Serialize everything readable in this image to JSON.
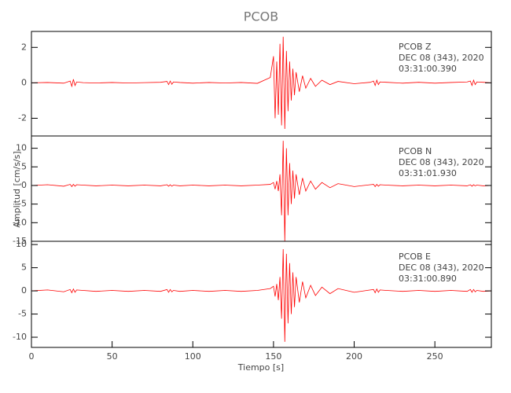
{
  "chart_data": [
    {
      "type": "line",
      "title": "PCOB",
      "color": "#ff0000",
      "annotations": [
        "PCOB   Z",
        "DEC 08 (343), 2020",
        "03:31:00.390"
      ],
      "xlim": [
        0,
        285
      ],
      "ylim": [
        -3,
        2.9
      ],
      "yticks": [
        -2,
        0,
        2
      ],
      "x": [
        0,
        10,
        20,
        24,
        25,
        26,
        27,
        28,
        32,
        40,
        50,
        60,
        70,
        80,
        84,
        85,
        86,
        87,
        88,
        92,
        100,
        110,
        120,
        130,
        140,
        148,
        150,
        151,
        152,
        153,
        154,
        155,
        156,
        157,
        158,
        159,
        160,
        161,
        162,
        163,
        164,
        166,
        168,
        170,
        173,
        176,
        180,
        185,
        190,
        200,
        210,
        212,
        213,
        214,
        215,
        216,
        220,
        230,
        240,
        250,
        260,
        270,
        272,
        273,
        274,
        275,
        276,
        280,
        285
      ],
      "values": [
        0,
        0.02,
        -0.02,
        0.1,
        -0.2,
        0.2,
        -0.15,
        0.05,
        0.01,
        -0.01,
        0.02,
        -0.01,
        0.01,
        0.03,
        0.08,
        -0.1,
        0.1,
        -0.08,
        0.05,
        0.02,
        -0.02,
        0.02,
        -0.01,
        0.02,
        -0.03,
        0.3,
        1.5,
        -2,
        1.2,
        -1.8,
        2.2,
        -2.4,
        2.6,
        -2.6,
        1.8,
        -1.6,
        1.2,
        -1,
        0.8,
        -0.7,
        0.6,
        -0.5,
        0.4,
        -0.3,
        0.25,
        -0.2,
        0.15,
        -0.1,
        0.08,
        -0.05,
        0.03,
        0.1,
        -0.15,
        0.15,
        -0.1,
        0.05,
        0.03,
        -0.02,
        0.03,
        -0.02,
        0.02,
        0.05,
        0.1,
        -0.15,
        0.15,
        -0.1,
        0.05,
        0.03,
        0
      ]
    },
    {
      "type": "line",
      "ylabel": "Amplitud [cm/s/s]",
      "color": "#ff0000",
      "annotations": [
        "PCOB   N",
        "DEC 08 (343), 2020",
        "03:31:01.930"
      ],
      "xlim": [
        0,
        285
      ],
      "ylim": [
        -15,
        13.3
      ],
      "yticks": [
        -15,
        -10,
        -5,
        0,
        5,
        10
      ],
      "x": [
        0,
        10,
        20,
        24,
        25,
        26,
        27,
        28,
        32,
        40,
        50,
        60,
        70,
        80,
        84,
        85,
        86,
        87,
        88,
        92,
        100,
        110,
        120,
        130,
        140,
        148,
        150,
        151,
        152,
        153,
        154,
        155,
        156,
        157,
        158,
        159,
        160,
        161,
        162,
        163,
        164,
        166,
        168,
        170,
        173,
        176,
        180,
        185,
        190,
        200,
        210,
        212,
        213,
        214,
        215,
        216,
        220,
        230,
        240,
        250,
        260,
        270,
        272,
        273,
        274,
        275,
        276,
        280,
        285
      ],
      "values": [
        0,
        0.2,
        -0.2,
        0.3,
        -0.3,
        0.3,
        -0.2,
        0.2,
        0.1,
        -0.1,
        0.1,
        -0.1,
        0.1,
        -0.1,
        0.2,
        -0.2,
        0.2,
        -0.2,
        0.1,
        -0.1,
        0.1,
        -0.1,
        0.1,
        -0.1,
        0.1,
        0.3,
        0.8,
        -1,
        1.2,
        -1.5,
        3,
        -8,
        12,
        -15,
        10,
        -8,
        6,
        -5,
        4,
        -3.5,
        3,
        -2.5,
        2,
        -1.5,
        1.2,
        -1,
        0.8,
        -0.6,
        0.5,
        -0.3,
        0.2,
        0.3,
        -0.3,
        0.3,
        -0.2,
        0.2,
        0.1,
        -0.1,
        0.1,
        -0.1,
        0.1,
        -0.1,
        0.2,
        -0.2,
        0.2,
        -0.1,
        0.1,
        -0.1,
        0
      ]
    },
    {
      "type": "line",
      "xlabel": "Tiempo [s]",
      "color": "#ff0000",
      "annotations": [
        "PCOB   E",
        "DEC 08 (343), 2020",
        "03:31:00.890"
      ],
      "xlim": [
        0,
        285
      ],
      "xticks": [
        0,
        50,
        100,
        150,
        200,
        250
      ],
      "ylim": [
        -12.2,
        10.7
      ],
      "yticks": [
        -10,
        -5,
        0,
        5,
        10
      ],
      "x": [
        0,
        10,
        20,
        24,
        25,
        26,
        27,
        28,
        32,
        40,
        50,
        60,
        70,
        80,
        84,
        85,
        86,
        87,
        88,
        92,
        100,
        110,
        120,
        130,
        140,
        148,
        150,
        151,
        152,
        153,
        154,
        155,
        156,
        157,
        158,
        159,
        160,
        161,
        162,
        163,
        164,
        166,
        168,
        170,
        173,
        176,
        180,
        185,
        190,
        200,
        210,
        212,
        213,
        214,
        215,
        216,
        220,
        230,
        240,
        250,
        260,
        270,
        272,
        273,
        274,
        275,
        276,
        280,
        285
      ],
      "values": [
        0,
        0.2,
        -0.2,
        0.3,
        -0.4,
        0.4,
        -0.3,
        0.2,
        0.1,
        -0.1,
        0.1,
        -0.1,
        0.1,
        -0.1,
        0.3,
        -0.3,
        0.3,
        -0.2,
        0.1,
        -0.1,
        0.1,
        -0.1,
        0.1,
        -0.1,
        0.1,
        0.5,
        1,
        -1.2,
        1.5,
        -2,
        3,
        -6,
        9,
        -11,
        8,
        -7,
        6,
        -5,
        4,
        -3.5,
        3,
        -2.5,
        2,
        -1.5,
        1.2,
        -1,
        0.8,
        -0.6,
        0.5,
        -0.3,
        0.2,
        0.3,
        -0.4,
        0.4,
        -0.3,
        0.2,
        0.1,
        -0.1,
        0.1,
        -0.1,
        0.1,
        -0.1,
        0.3,
        -0.3,
        0.3,
        -0.2,
        0.1,
        -0.1,
        0
      ]
    }
  ]
}
